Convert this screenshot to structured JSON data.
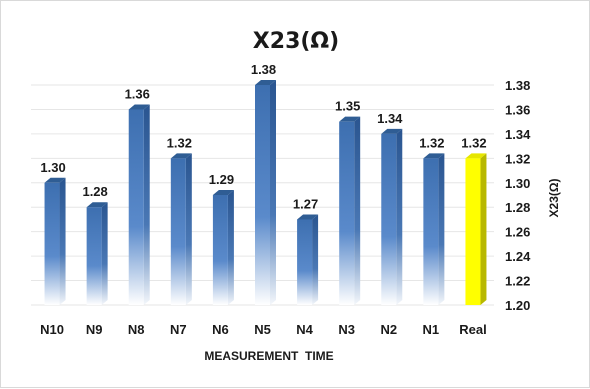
{
  "chart_data": {
    "type": "bar",
    "title": "X23(Ω)",
    "xlabel": "MEASUREMENT  TIME",
    "ylabel": "X23(Ω)",
    "categories": [
      "N10",
      "N9",
      "N8",
      "N7",
      "N6",
      "N5",
      "N4",
      "N3",
      "N2",
      "N1",
      "Real"
    ],
    "values": [
      1.3,
      1.28,
      1.36,
      1.32,
      1.29,
      1.38,
      1.27,
      1.35,
      1.34,
      1.32,
      1.32
    ],
    "data_labels": [
      "1.30",
      "1.28",
      "1.36",
      "1.32",
      "1.29",
      "1.38",
      "1.27",
      "1.35",
      "1.34",
      "1.32",
      "1.32"
    ],
    "ylim": [
      1.2,
      1.38
    ],
    "yticks": [
      "1.20",
      "1.22",
      "1.24",
      "1.26",
      "1.28",
      "1.30",
      "1.32",
      "1.34",
      "1.36",
      "1.38"
    ],
    "y_axis_side": "right",
    "grid": true,
    "colors": {
      "bar": "#4a7ebb",
      "bar_dark": "#2f5d94",
      "highlight": "#ffff00",
      "highlight_dark": "#b8b800",
      "grid": "#e6e6e6"
    },
    "highlight_category": "Real"
  }
}
